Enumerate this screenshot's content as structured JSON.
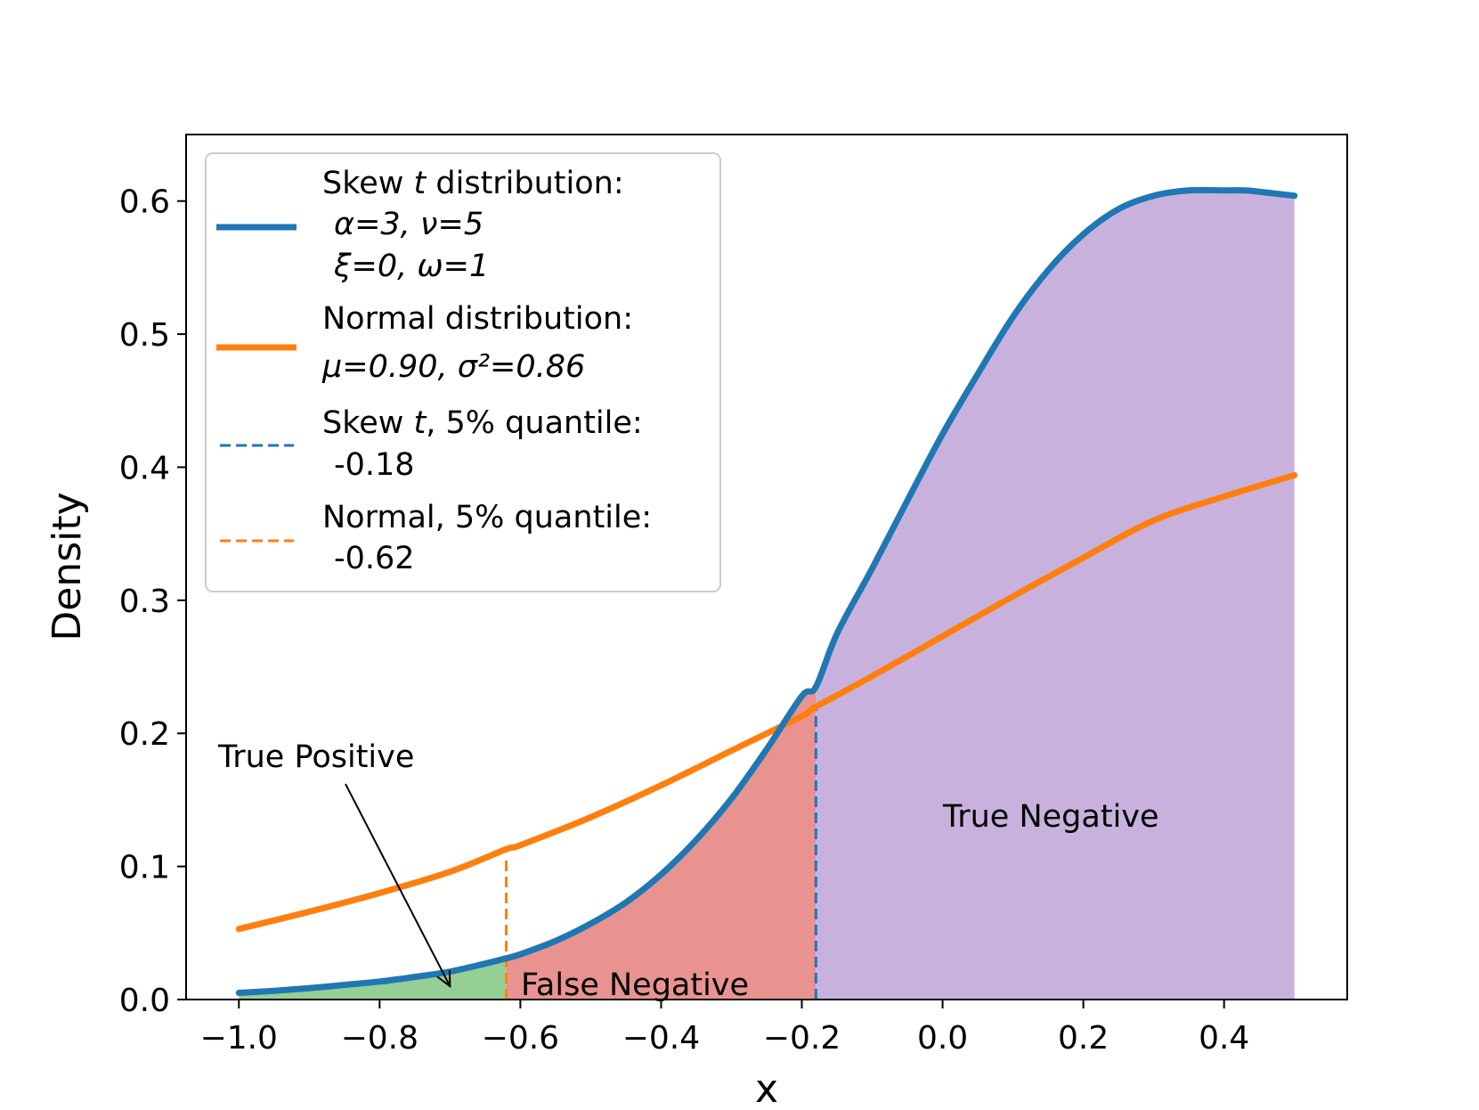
{
  "chart_data": {
    "type": "line",
    "xlabel": "x",
    "ylabel": "Density",
    "xlim": [
      -1.075,
      0.575
    ],
    "ylim": [
      0.0,
      0.65
    ],
    "x_ticks": [
      -1.0,
      -0.8,
      -0.6,
      -0.4,
      -0.2,
      0.0,
      0.2,
      0.4
    ],
    "x_tick_labels": [
      "−1.0",
      "−0.8",
      "−0.6",
      "−0.4",
      "−0.2",
      "0.0",
      "0.2",
      "0.4"
    ],
    "y_ticks": [
      0.0,
      0.1,
      0.2,
      0.3,
      0.4,
      0.5,
      0.6
    ],
    "y_tick_labels": [
      "0.0",
      "0.1",
      "0.2",
      "0.3",
      "0.4",
      "0.5",
      "0.6"
    ],
    "grid": false,
    "legend_position": "top-left",
    "series": [
      {
        "name": "Skew t distribution",
        "color": "#1f77b4",
        "x": [
          -1.0,
          -0.95,
          -0.9,
          -0.85,
          -0.8,
          -0.75,
          -0.7,
          -0.65,
          -0.62,
          -0.6,
          -0.55,
          -0.5,
          -0.45,
          -0.4,
          -0.35,
          -0.3,
          -0.25,
          -0.2,
          -0.18,
          -0.15,
          -0.1,
          -0.05,
          0.0,
          0.05,
          0.1,
          0.15,
          0.2,
          0.25,
          0.3,
          0.35,
          0.4,
          0.43,
          0.45,
          0.5
        ],
        "y": [
          0.005,
          0.0065,
          0.0085,
          0.011,
          0.0135,
          0.017,
          0.021,
          0.027,
          0.031,
          0.034,
          0.044,
          0.057,
          0.073,
          0.094,
          0.12,
          0.151,
          0.188,
          0.228,
          0.235,
          0.275,
          0.324,
          0.375,
          0.425,
          0.47,
          0.513,
          0.548,
          0.575,
          0.594,
          0.604,
          0.608,
          0.608,
          0.608,
          0.607,
          0.604
        ]
      },
      {
        "name": "Normal distribution",
        "color": "#ff7f0e",
        "x": [
          -1.0,
          -0.9,
          -0.8,
          -0.7,
          -0.62,
          -0.6,
          -0.5,
          -0.4,
          -0.3,
          -0.2,
          -0.18,
          -0.1,
          0.0,
          0.1,
          0.2,
          0.3,
          0.4,
          0.5
        ],
        "y": [
          0.053,
          0.066,
          0.08,
          0.096,
          0.113,
          0.116,
          0.137,
          0.161,
          0.187,
          0.213,
          0.22,
          0.243,
          0.273,
          0.303,
          0.332,
          0.36,
          0.378,
          0.394
        ]
      }
    ],
    "quantile_lines": [
      {
        "name": "Skew t, 5% quantile",
        "x": -0.18,
        "color": "#1f77b4",
        "y_top": 0.22
      },
      {
        "name": "Normal, 5% quantile",
        "x": -0.62,
        "color": "#ff7f0e",
        "y_top": 0.105
      }
    ],
    "regions": [
      {
        "name": "True Positive",
        "x_from": -1.0,
        "x_to": -0.62,
        "color": "#95cf95"
      },
      {
        "name": "False Negative",
        "x_from": -0.62,
        "x_to": -0.18,
        "color": "#e99391"
      },
      {
        "name": "True Negative",
        "x_from": -0.18,
        "x_to": 0.5,
        "color": "#c8b2dd"
      }
    ],
    "legend": [
      {
        "lines": [
          "Skew t distribution:",
          "α=3,  ν=5",
          "ξ=0,  ω=1"
        ],
        "color": "#1f77b4",
        "style": "solid"
      },
      {
        "lines": [
          "Normal distribution:",
          "μ=0.90, σ²=0.86"
        ],
        "color": "#ff7f0e",
        "style": "solid"
      },
      {
        "lines": [
          "Skew t, 5% quantile:",
          "-0.18"
        ],
        "color": "#1f77b4",
        "style": "dashed"
      },
      {
        "lines": [
          "Normal, 5% quantile:",
          "-0.62"
        ],
        "color": "#ff7f0e",
        "style": "dashed"
      }
    ],
    "annotations": [
      {
        "text": "True Positive",
        "arrow_to": [
          -0.7,
          0.01
        ]
      },
      {
        "text": "False Negative"
      },
      {
        "text": "True Negative"
      }
    ]
  }
}
